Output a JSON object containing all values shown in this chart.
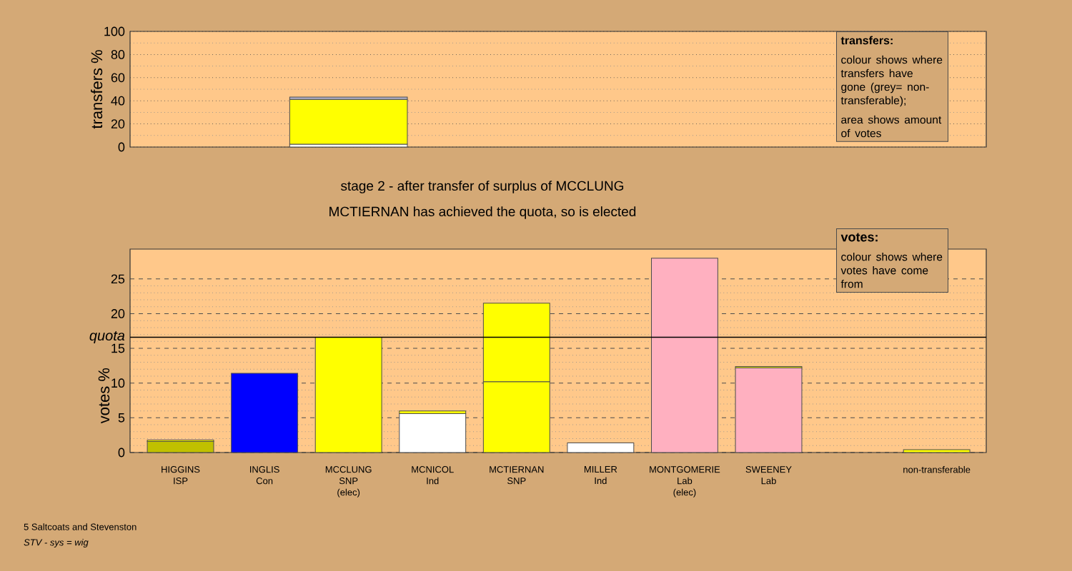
{
  "chart_data": [
    {
      "type": "bar",
      "stacked": true,
      "ylabel": "transfers %",
      "ylim": [
        0,
        100
      ],
      "yticks": [
        0,
        20,
        40,
        60,
        80,
        100
      ],
      "grid": "y",
      "tick_labels": "y",
      "categories": [
        null,
        null,
        null,
        null,
        null,
        null,
        null,
        null,
        null,
        null
      ],
      "series": [
        {
          "color": "#ffffff",
          "values": [
            null,
            null,
            2.5,
            null,
            null,
            null,
            null,
            null,
            null,
            null
          ]
        },
        {
          "color": "#ffff00",
          "values": [
            null,
            null,
            38.7,
            null,
            null,
            null,
            null,
            null,
            null,
            null
          ]
        },
        {
          "color": "#b0b0c8",
          "values": [
            null,
            null,
            2.0,
            null,
            null,
            null,
            null,
            null,
            null,
            null
          ]
        }
      ],
      "annotations": [
        "transfers:",
        "colour shows where transfers have gone (grey= non-transferable);",
        "area shows amount of votes"
      ]
    },
    {
      "type": "bar",
      "stacked": true,
      "title": "stage 2 - after transfer of surplus of MCCLUNG",
      "subtitle": "MCTIERNAN has achieved the quota, so is elected",
      "ylabel": "votes %",
      "ylim": [
        0,
        29.3
      ],
      "yticks": [
        0,
        5,
        10,
        15,
        20,
        25
      ],
      "grid": "y",
      "categories": [
        "HIGGINS ISP",
        "INGLIS Con",
        "MCCLUNG SNP (elec)",
        "MCNICOL Ind",
        "MCTIERNAN SNP",
        "MILLER Ind",
        "MONTGOMERIE Lab (elec)",
        "SWEENEY Lab",
        null,
        "non-transferable"
      ],
      "series": [
        {
          "colors": [
            "#c0c000",
            "#0000ff",
            "#ffff00",
            "#ffffff",
            "#ffff00",
            "#ffffff",
            "#ffb0c0",
            "#ffb0c0",
            null,
            null
          ],
          "values": [
            1.6,
            11.4,
            16.6,
            5.6,
            10.2,
            1.4,
            28.0,
            12.2,
            null,
            null
          ]
        },
        {
          "color": "#ffff00",
          "values": [
            0.2,
            null,
            null,
            0.4,
            11.3,
            null,
            null,
            0.2,
            null,
            0.4
          ]
        }
      ],
      "ref_lines": [
        {
          "axis": "y",
          "value": 16.6,
          "label": "quota"
        }
      ],
      "annotations": [
        "votes:",
        "colour shows where votes have come from",
        "5 Saltcoats and Stevenston",
        "STV - sys = wig"
      ]
    }
  ]
}
